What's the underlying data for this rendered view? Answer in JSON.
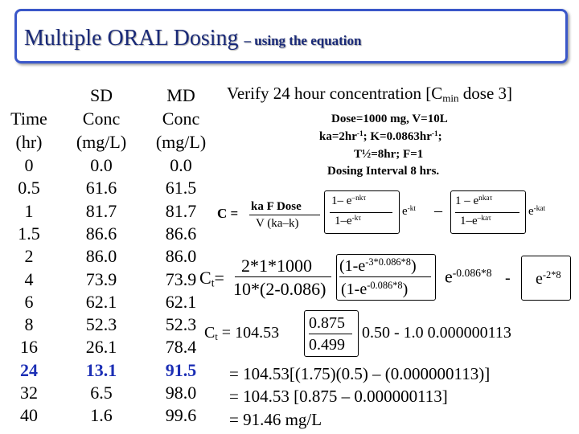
{
  "title": {
    "main": "Multiple ORAL Dosing",
    "sub": "– using the equation"
  },
  "table": {
    "headers": [
      [
        "Time",
        "(hr)"
      ],
      [
        "SD",
        "Conc",
        "(mg/L)"
      ],
      [
        "MD",
        "Conc",
        "(mg/L)"
      ]
    ],
    "rows": [
      [
        "0",
        "0.0",
        "0.0"
      ],
      [
        "0.5",
        "61.6",
        "61.5"
      ],
      [
        "1",
        "81.7",
        "81.7"
      ],
      [
        "1.5",
        "86.6",
        "86.6"
      ],
      [
        "2",
        "86.0",
        "86.0"
      ],
      [
        "4",
        "73.9",
        "73.9"
      ],
      [
        "6",
        "62.1",
        "62.1"
      ],
      [
        "8",
        "52.3",
        "52.3"
      ],
      [
        "16",
        "26.1",
        "78.4"
      ],
      [
        "24",
        "13.1",
        "91.5"
      ],
      [
        "32",
        "6.5",
        "98.0"
      ],
      [
        "40",
        "1.6",
        "99.6"
      ]
    ]
  },
  "verify": {
    "pre": "Verify 24 hour concentration [C",
    "sub": "min",
    "post": " dose 3]"
  },
  "params": {
    "dose": "Dose=1000 mg, V=10L",
    "rates": {
      "ka": "ka=2hr",
      "ka_sup": "-1",
      "k": "; K=0.0863hr",
      "k_sup": "-1",
      "end": ";"
    },
    "half": "T½=8hr; F=1",
    "interval": "Dosing Interval 8 hrs."
  },
  "general": {
    "lhs": "C =",
    "num": "ka F Dose",
    "den": "V (ka–k)",
    "b1_top": "1– e",
    "b1_top_sup": "–nkτ",
    "b1_bot": "1–e",
    "b1_bot_sup": "-kτ",
    "e1": "e",
    "e1_sup": "-kt",
    "minus": "–",
    "b2_top": "1 – e",
    "b2_top_sup": "nkaτ",
    "b2_bot": "1–e",
    "b2_bot_sup": "–kaτ",
    "e2": "e",
    "e2_sup": "-kat"
  },
  "step1": {
    "c": "C",
    "c_sub": "t",
    "eq": "=",
    "num": "2*1*1000",
    "den": "10*(2-0.086)",
    "top": "(1-e",
    "top_sup": "-3*0.086*8",
    "top_close": ")",
    "bot": "(1-e",
    "bot_sup": "-0.086*8",
    "bot_close": ")",
    "e1": "e",
    "e1_sup": "-0.086*8",
    "minus": "-",
    "e2": "e",
    "e2_sup": "-2*8"
  },
  "step2": {
    "c": "C",
    "c_sub": "t",
    "eq": " = 104.53",
    "num": "0.875",
    "den": "0.499",
    "rest": "0.50 - 1.0 0.000000113"
  },
  "results": [
    "= 104.53[(1.75)(0.5) – (0.000000113)]",
    "= 104.53 [0.875 – 0.000000113]",
    "=  91.46 mg/L"
  ]
}
